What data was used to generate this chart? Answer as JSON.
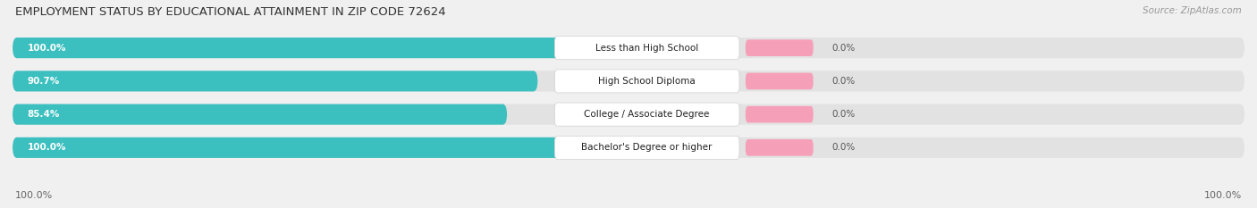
{
  "title": "EMPLOYMENT STATUS BY EDUCATIONAL ATTAINMENT IN ZIP CODE 72624",
  "source": "Source: ZipAtlas.com",
  "categories": [
    "Less than High School",
    "High School Diploma",
    "College / Associate Degree",
    "Bachelor's Degree or higher"
  ],
  "labor_force_pct": [
    100.0,
    90.7,
    85.4,
    100.0
  ],
  "unemployed_pct": [
    0.0,
    0.0,
    0.0,
    0.0
  ],
  "left_axis_pct": "100.0%",
  "right_axis_pct": "100.0%",
  "labor_force_color": "#3bbfbf",
  "unemployed_color": "#f5a0b8",
  "label_bg_color": "#ffffff",
  "bar_bg_color": "#e2e2e2",
  "title_fontsize": 9.5,
  "source_fontsize": 7.5,
  "bar_label_fontsize": 7.5,
  "category_fontsize": 7.5,
  "legend_fontsize": 8,
  "axis_fontsize": 8,
  "background_color": "#f0f0f0"
}
